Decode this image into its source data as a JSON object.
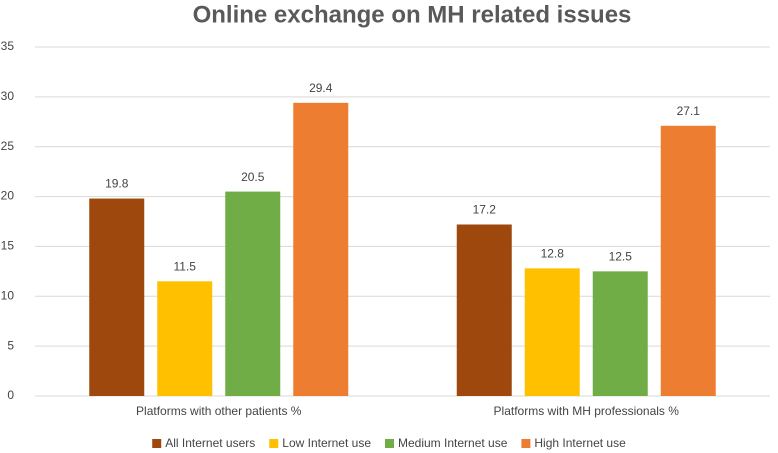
{
  "chart_data": {
    "type": "bar",
    "title": "Online exchange on MH related issues",
    "categories": [
      "Platforms with other patients %",
      "Platforms with MH professionals %"
    ],
    "series": [
      {
        "name": "All Internet users",
        "color": "#9e480e",
        "values": [
          19.8,
          17.2
        ]
      },
      {
        "name": "Low Internet use",
        "color": "#ffc000",
        "values": [
          11.5,
          12.8
        ]
      },
      {
        "name": "Medium Internet use",
        "color": "#70ad47",
        "values": [
          20.5,
          12.5
        ]
      },
      {
        "name": "High Internet use",
        "color": "#ed7d31",
        "values": [
          29.4,
          27.1
        ]
      }
    ],
    "ylim": [
      0,
      35
    ],
    "yticks": [
      0,
      5,
      10,
      15,
      20,
      25,
      30,
      35
    ],
    "grid": true,
    "legend": "bottom"
  }
}
